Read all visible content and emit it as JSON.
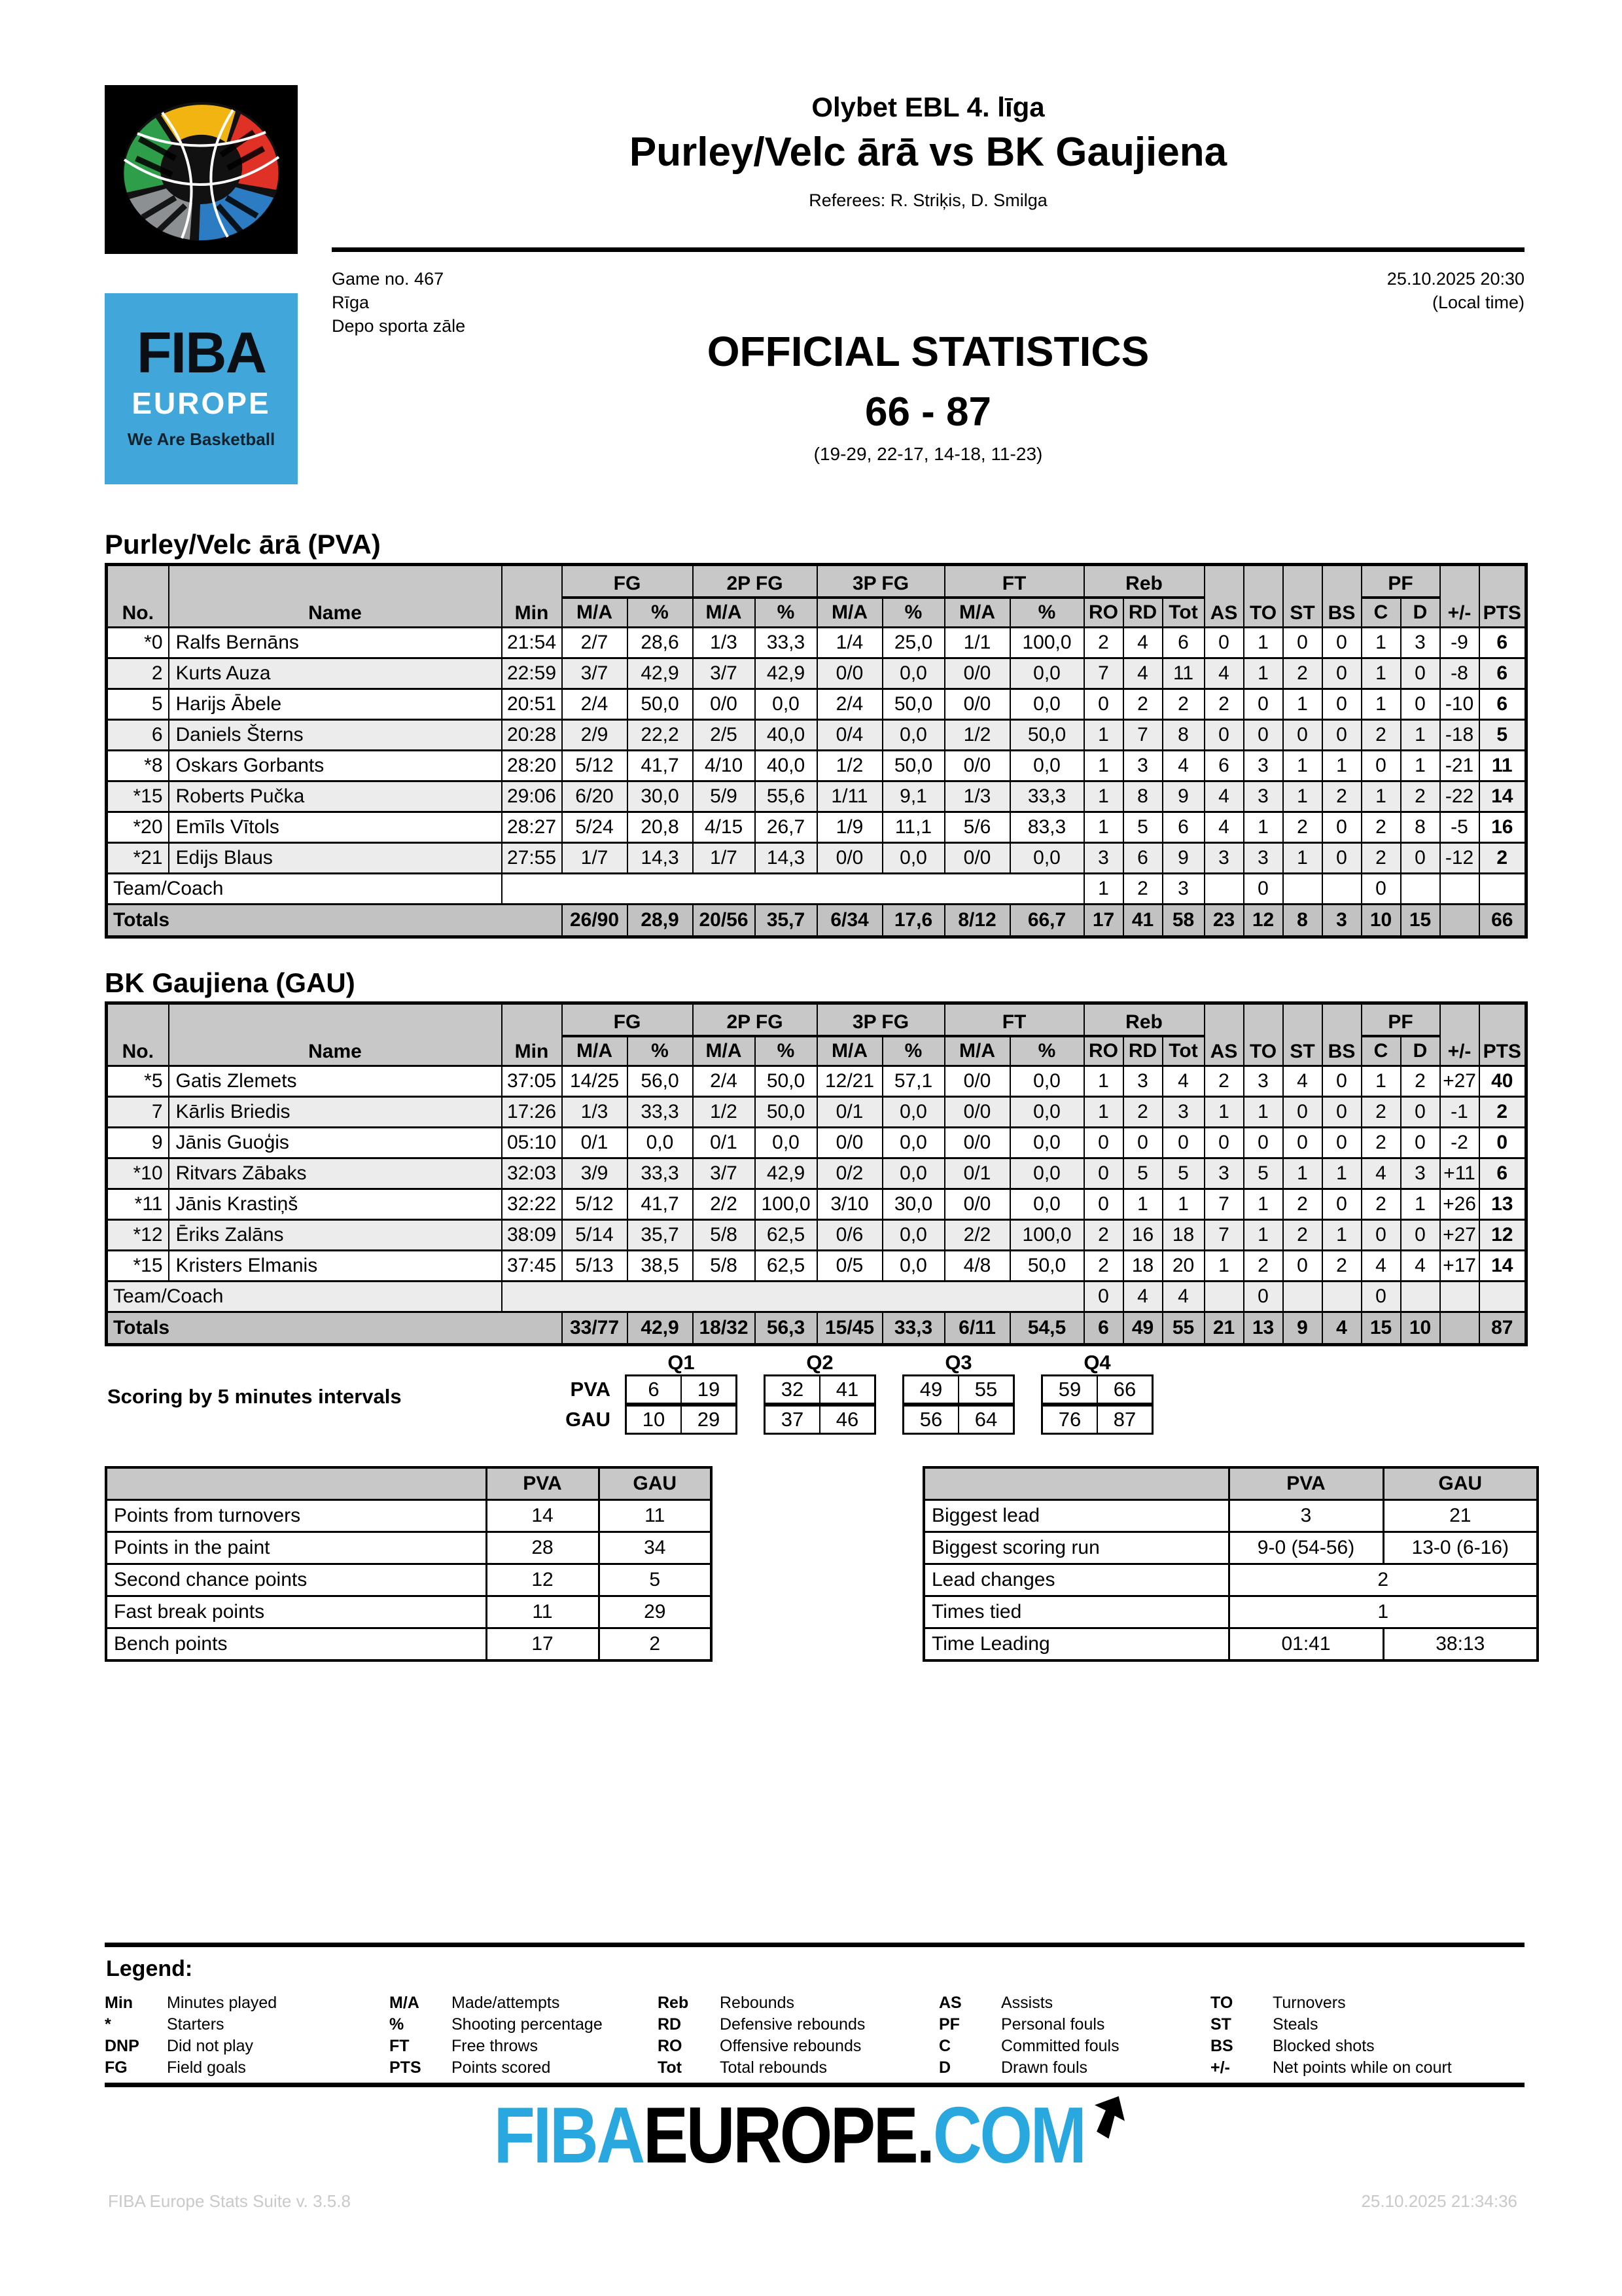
{
  "header": {
    "league": "Olybet EBL 4. līga",
    "match_title": "Purley/Velc ārā vs BK Gaujiena",
    "referees": "Referees: R. Striķis, D. Smilga",
    "game_no": "Game no. 467",
    "city": "Rīga",
    "venue": "Depo sporta zāle",
    "datetime": "25.10.2025 20:30",
    "local_time": "(Local time)",
    "doc_title": "OFFICIAL STATISTICS",
    "final_score": "66 - 87",
    "quarter_scores": "(19-29, 22-17, 14-18, 11-23)"
  },
  "logos": {
    "fiba_europe": {
      "line1": "FIBA",
      "line2": "EUROPE",
      "line3": "We Are Basketball",
      "bg": "#41a6d9"
    },
    "footer_logo": {
      "part1": "FIBA",
      "part2": "EUROPE.",
      "part3": "COM",
      "blue": "#29a8df"
    }
  },
  "table_columns": {
    "corner": [
      "No.",
      "Name",
      "Min"
    ],
    "groups": [
      {
        "label": "FG",
        "span": 2
      },
      {
        "label": "2P FG",
        "span": 2
      },
      {
        "label": "3P FG",
        "span": 2
      },
      {
        "label": "FT",
        "span": 2
      },
      {
        "label": "Reb",
        "span": 3
      }
    ],
    "mid": [
      "AS",
      "TO",
      "ST",
      "BS"
    ],
    "pf_group": {
      "label": "PF",
      "span": 2
    },
    "tail": [
      "+/-",
      "PTS"
    ],
    "sub": [
      "M/A",
      "%",
      "M/A",
      "%",
      "M/A",
      "%",
      "M/A",
      "%",
      "RO",
      "RD",
      "Tot",
      "C",
      "D"
    ]
  },
  "stats_tables": [
    {
      "title": "Purley/Velc ārā (PVA)",
      "rows": [
        {
          "no": "*0",
          "name": "Ralfs Bernāns",
          "cells": [
            "21:54",
            "2/7",
            "28,6",
            "1/3",
            "33,3",
            "1/4",
            "25,0",
            "1/1",
            "100,0",
            "2",
            "4",
            "6",
            "0",
            "1",
            "0",
            "0",
            "1",
            "3",
            "-9",
            "6"
          ]
        },
        {
          "no": "2",
          "name": "Kurts Auza",
          "cells": [
            "22:59",
            "3/7",
            "42,9",
            "3/7",
            "42,9",
            "0/0",
            "0,0",
            "0/0",
            "0,0",
            "7",
            "4",
            "11",
            "4",
            "1",
            "2",
            "0",
            "1",
            "0",
            "-8",
            "6"
          ]
        },
        {
          "no": "5",
          "name": "Harijs Ābele",
          "cells": [
            "20:51",
            "2/4",
            "50,0",
            "0/0",
            "0,0",
            "2/4",
            "50,0",
            "0/0",
            "0,0",
            "0",
            "2",
            "2",
            "2",
            "0",
            "1",
            "0",
            "1",
            "0",
            "-10",
            "6"
          ]
        },
        {
          "no": "6",
          "name": "Daniels Šterns",
          "cells": [
            "20:28",
            "2/9",
            "22,2",
            "2/5",
            "40,0",
            "0/4",
            "0,0",
            "1/2",
            "50,0",
            "1",
            "7",
            "8",
            "0",
            "0",
            "0",
            "0",
            "2",
            "1",
            "-18",
            "5"
          ]
        },
        {
          "no": "*8",
          "name": "Oskars Gorbants",
          "cells": [
            "28:20",
            "5/12",
            "41,7",
            "4/10",
            "40,0",
            "1/2",
            "50,0",
            "0/0",
            "0,0",
            "1",
            "3",
            "4",
            "6",
            "3",
            "1",
            "1",
            "0",
            "1",
            "-21",
            "11"
          ]
        },
        {
          "no": "*15",
          "name": "Roberts Pučka",
          "cells": [
            "29:06",
            "6/20",
            "30,0",
            "5/9",
            "55,6",
            "1/11",
            "9,1",
            "1/3",
            "33,3",
            "1",
            "8",
            "9",
            "4",
            "3",
            "1",
            "2",
            "1",
            "2",
            "-22",
            "14"
          ]
        },
        {
          "no": "*20",
          "name": "Emīls Vītols",
          "cells": [
            "28:27",
            "5/24",
            "20,8",
            "4/15",
            "26,7",
            "1/9",
            "11,1",
            "5/6",
            "83,3",
            "1",
            "5",
            "6",
            "4",
            "1",
            "2",
            "0",
            "2",
            "8",
            "-5",
            "16"
          ]
        },
        {
          "no": "*21",
          "name": "Edijs Blaus",
          "cells": [
            "27:55",
            "1/7",
            "14,3",
            "1/7",
            "14,3",
            "0/0",
            "0,0",
            "0/0",
            "0,0",
            "3",
            "6",
            "9",
            "3",
            "3",
            "1",
            "0",
            "2",
            "0",
            "-12",
            "2"
          ]
        }
      ],
      "team_row": {
        "label": "Team/Coach",
        "ro": "1",
        "rd": "2",
        "tot": "3",
        "to": "0",
        "c": "0"
      },
      "totals": {
        "label": "Totals",
        "cells": [
          "26/90",
          "28,9",
          "20/56",
          "35,7",
          "6/34",
          "17,6",
          "8/12",
          "66,7",
          "17",
          "41",
          "58",
          "23",
          "12",
          "8",
          "3",
          "10",
          "15",
          "",
          "66"
        ]
      }
    },
    {
      "title": "BK Gaujiena (GAU)",
      "rows": [
        {
          "no": "*5",
          "name": "Gatis Zlemets",
          "cells": [
            "37:05",
            "14/25",
            "56,0",
            "2/4",
            "50,0",
            "12/21",
            "57,1",
            "0/0",
            "0,0",
            "1",
            "3",
            "4",
            "2",
            "3",
            "4",
            "0",
            "1",
            "2",
            "+27",
            "40"
          ]
        },
        {
          "no": "7",
          "name": "Kārlis Briedis",
          "cells": [
            "17:26",
            "1/3",
            "33,3",
            "1/2",
            "50,0",
            "0/1",
            "0,0",
            "0/0",
            "0,0",
            "1",
            "2",
            "3",
            "1",
            "1",
            "0",
            "0",
            "2",
            "0",
            "-1",
            "2"
          ]
        },
        {
          "no": "9",
          "name": "Jānis Guoģis",
          "cells": [
            "05:10",
            "0/1",
            "0,0",
            "0/1",
            "0,0",
            "0/0",
            "0,0",
            "0/0",
            "0,0",
            "0",
            "0",
            "0",
            "0",
            "0",
            "0",
            "0",
            "2",
            "0",
            "-2",
            "0"
          ]
        },
        {
          "no": "*10",
          "name": "Ritvars Zābaks",
          "cells": [
            "32:03",
            "3/9",
            "33,3",
            "3/7",
            "42,9",
            "0/2",
            "0,0",
            "0/1",
            "0,0",
            "0",
            "5",
            "5",
            "3",
            "5",
            "1",
            "1",
            "4",
            "3",
            "+11",
            "6"
          ]
        },
        {
          "no": "*11",
          "name": "Jānis Krastiņš",
          "cells": [
            "32:22",
            "5/12",
            "41,7",
            "2/2",
            "100,0",
            "3/10",
            "30,0",
            "0/0",
            "0,0",
            "0",
            "1",
            "1",
            "7",
            "1",
            "2",
            "0",
            "2",
            "1",
            "+26",
            "13"
          ]
        },
        {
          "no": "*12",
          "name": "Ēriks Zalāns",
          "cells": [
            "38:09",
            "5/14",
            "35,7",
            "5/8",
            "62,5",
            "0/6",
            "0,0",
            "2/2",
            "100,0",
            "2",
            "16",
            "18",
            "7",
            "1",
            "2",
            "1",
            "0",
            "0",
            "+27",
            "12"
          ]
        },
        {
          "no": "*15",
          "name": "Kristers Elmanis",
          "cells": [
            "37:45",
            "5/13",
            "38,5",
            "5/8",
            "62,5",
            "0/5",
            "0,0",
            "4/8",
            "50,0",
            "2",
            "18",
            "20",
            "1",
            "2",
            "0",
            "2",
            "4",
            "4",
            "+17",
            "14"
          ]
        }
      ],
      "team_row": {
        "label": "Team/Coach",
        "ro": "0",
        "rd": "4",
        "tot": "4",
        "to": "0",
        "c": "0"
      },
      "totals": {
        "label": "Totals",
        "cells": [
          "33/77",
          "42,9",
          "18/32",
          "56,3",
          "15/45",
          "33,3",
          "6/11",
          "54,5",
          "6",
          "49",
          "55",
          "21",
          "13",
          "9",
          "4",
          "15",
          "10",
          "",
          "87"
        ]
      }
    }
  ],
  "scoring_intervals": {
    "label": "Scoring by 5 minutes intervals",
    "quarters": [
      "Q1",
      "Q2",
      "Q3",
      "Q4"
    ],
    "teams": [
      {
        "code": "PVA",
        "values": [
          [
            "6",
            "19"
          ],
          [
            "32",
            "41"
          ],
          [
            "49",
            "55"
          ],
          [
            "59",
            "66"
          ]
        ]
      },
      {
        "code": "GAU",
        "values": [
          [
            "10",
            "29"
          ],
          [
            "37",
            "46"
          ],
          [
            "56",
            "64"
          ],
          [
            "76",
            "87"
          ]
        ]
      }
    ]
  },
  "team_codes": [
    "PVA",
    "GAU"
  ],
  "comparison_tables": [
    {
      "rows": [
        [
          "Points from turnovers",
          "14",
          "11"
        ],
        [
          "Points in the paint",
          "28",
          "34"
        ],
        [
          "Second chance points",
          "12",
          "5"
        ],
        [
          "Fast break points",
          "11",
          "29"
        ],
        [
          "Bench points",
          "17",
          "2"
        ]
      ]
    },
    {
      "rows": [
        [
          "Biggest lead",
          "3",
          "21"
        ],
        [
          "Biggest scoring run",
          "9-0 (54-56)",
          "13-0 (6-16)"
        ],
        [
          "Lead changes",
          "2",
          null
        ],
        [
          "Times tied",
          "1",
          null
        ],
        [
          "Time Leading",
          "01:41",
          "38:13"
        ]
      ]
    }
  ],
  "legend": {
    "title": "Legend:",
    "columns": [
      [
        [
          "Min",
          "Minutes played"
        ],
        [
          "*",
          "Starters"
        ],
        [
          "DNP",
          "Did not play"
        ],
        [
          "FG",
          "Field goals"
        ]
      ],
      [
        [
          "M/A",
          "Made/attempts"
        ],
        [
          "%",
          "Shooting percentage"
        ],
        [
          "FT",
          "Free throws"
        ],
        [
          "PTS",
          "Points scored"
        ]
      ],
      [
        [
          "Reb",
          "Rebounds"
        ],
        [
          "RD",
          "Defensive rebounds"
        ],
        [
          "RO",
          "Offensive rebounds"
        ],
        [
          "Tot",
          "Total rebounds"
        ]
      ],
      [
        [
          "AS",
          "Assists"
        ],
        [
          "PF",
          "Personal fouls"
        ],
        [
          "C",
          "Committed fouls"
        ],
        [
          "D",
          "Drawn fouls"
        ]
      ],
      [
        [
          "TO",
          "Turnovers"
        ],
        [
          "ST",
          "Steals"
        ],
        [
          "BS",
          "Blocked shots"
        ],
        [
          "+/-",
          "Net points while on court"
        ]
      ]
    ]
  },
  "footer": {
    "left": "FIBA Europe Stats Suite v. 3.5.8",
    "right": "25.10.2025 21:34:36"
  }
}
